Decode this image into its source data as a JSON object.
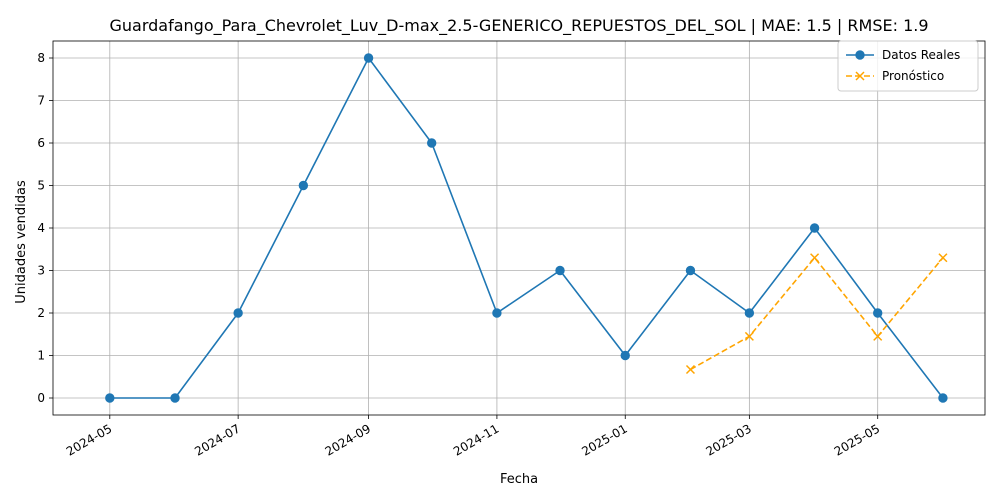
{
  "chart_data": {
    "type": "line",
    "title": "Guardafango_Para_Chevrolet_Luv_D-max_2.5-GENERICO_REPUESTOS_DEL_SOL | MAE: 1.5 | RMSE: 1.9",
    "xlabel": "Fecha",
    "ylabel": "Unidades vendidas",
    "x_tick_labels": [
      "2024-05",
      "2024-07",
      "2024-09",
      "2024-11",
      "2025-01",
      "2025-03",
      "2025-05"
    ],
    "y_tick_labels": [
      "0",
      "1",
      "2",
      "3",
      "4",
      "5",
      "6",
      "7",
      "8"
    ],
    "ylim": [
      -0.4,
      8.4
    ],
    "xlim": [
      "2024-04-04",
      "2025-06-21"
    ],
    "grid": true,
    "legend_position": "upper right",
    "series": [
      {
        "name": "Datos Reales",
        "color": "#1f77b4",
        "marker": "circle",
        "linestyle": "solid",
        "x": [
          "2024-05-01",
          "2024-06-01",
          "2024-07-01",
          "2024-08-01",
          "2024-09-01",
          "2024-10-01",
          "2024-11-01",
          "2024-12-01",
          "2025-01-01",
          "2025-02-01",
          "2025-03-01",
          "2025-04-01",
          "2025-05-01",
          "2025-06-01"
        ],
        "values": [
          0,
          0,
          2,
          5,
          8,
          6,
          2,
          3,
          1,
          3,
          2,
          4,
          2,
          0
        ]
      },
      {
        "name": "Pronóstico",
        "color": "#ffa500",
        "marker": "x",
        "linestyle": "dashed",
        "x": [
          "2025-02-01",
          "2025-03-01",
          "2025-04-01",
          "2025-05-01",
          "2025-06-01"
        ],
        "values": [
          0.67,
          1.45,
          3.3,
          1.45,
          3.3
        ]
      }
    ]
  }
}
